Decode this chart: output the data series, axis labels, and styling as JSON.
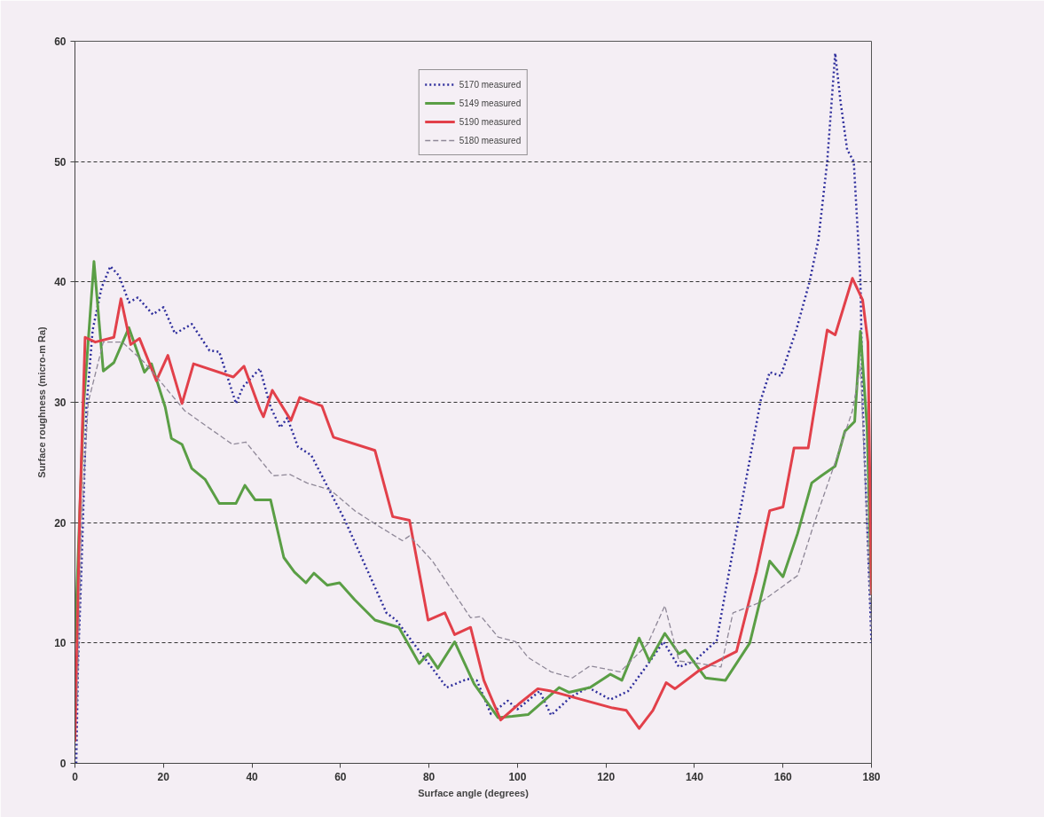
{
  "chart_data": {
    "type": "line",
    "xlabel": "Surface angle (degrees)",
    "ylabel": "Surface roughness (micro-m Ra)",
    "xlim": [
      0,
      180
    ],
    "ylim": [
      0,
      60
    ],
    "xticks": [
      0,
      20,
      40,
      60,
      80,
      100,
      120,
      140,
      160,
      180
    ],
    "yticks": [
      0,
      10,
      20,
      30,
      40,
      50,
      60
    ],
    "grid": "y",
    "legend": "top",
    "marker": "none",
    "series": [
      {
        "name": "5170 measured",
        "color": "#2e2e9c",
        "line_style": "dotted",
        "x": [
          0.3,
          0.7,
          1.4,
          2.6,
          4,
          6,
          8,
          10,
          12.2,
          14.2,
          17.6,
          20,
          22.6,
          26.4,
          30.4,
          32.6,
          36.4,
          38,
          41.8,
          44.2,
          46.4,
          48,
          50.4,
          53.4,
          61,
          70.4,
          72.6,
          84,
          88.6,
          90.8,
          94,
          97.8,
          100,
          105,
          107.6,
          112,
          116,
          121,
          125,
          129,
          133,
          136.5,
          140,
          145,
          150,
          155,
          157,
          159.5,
          163,
          166,
          168,
          170,
          171.8,
          173,
          174.5,
          176,
          177.5,
          178,
          179,
          180
        ],
        "values": [
          0,
          8.3,
          15.4,
          29.6,
          36,
          39.5,
          41.3,
          40.5,
          38.3,
          38.7,
          37.3,
          37.9,
          35.7,
          36.5,
          34.3,
          34.2,
          29.9,
          31.3,
          32.8,
          29.6,
          27.9,
          28.7,
          26.3,
          25.6,
          20.2,
          12.5,
          11.9,
          6.3,
          7,
          6.9,
          4.1,
          5.2,
          4.5,
          6,
          4,
          5.5,
          6.3,
          5.3,
          6,
          8,
          10.1,
          8,
          8.5,
          10.2,
          20.3,
          30.2,
          32.5,
          32.2,
          36,
          40,
          43.5,
          50,
          59,
          55,
          51,
          50,
          40.2,
          29.9,
          20,
          10
        ]
      },
      {
        "name": "5149 measured",
        "color": "#5a9e45",
        "line_style": "solid",
        "x": [
          0,
          2,
          4.3,
          6.4,
          8.8,
          12.2,
          15.7,
          17.3,
          20.4,
          21.8,
          24.2,
          26.4,
          29.4,
          32.6,
          36.4,
          38.4,
          40.7,
          44.2,
          47.2,
          49.6,
          52.2,
          54,
          57,
          59.8,
          63.2,
          67.8,
          73.2,
          77.8,
          79.8,
          82,
          85.8,
          90.2,
          95.6,
          98.8,
          102.4,
          109.4,
          111.6,
          116.4,
          121,
          123.6,
          127.5,
          129.8,
          133.3,
          136.5,
          137.9,
          142.5,
          147,
          152.5,
          157,
          160,
          163.3,
          166.5,
          168.7,
          171.8,
          174,
          176.2,
          177.5,
          179,
          180
        ],
        "values": [
          10,
          30,
          41.7,
          32.6,
          33.3,
          36.2,
          32.5,
          33.2,
          29.6,
          27,
          26.5,
          24.5,
          23.6,
          21.6,
          21.6,
          23.1,
          21.9,
          21.9,
          17.1,
          15.9,
          15,
          15.8,
          14.8,
          15,
          13.6,
          11.9,
          11.3,
          8.3,
          9.1,
          7.9,
          10.1,
          6.6,
          3.8,
          3.9,
          4.05,
          6.3,
          5.9,
          6.3,
          7.4,
          6.9,
          10.4,
          8.5,
          10.8,
          9.1,
          9.4,
          7.1,
          6.9,
          10,
          16.8,
          15.5,
          19.1,
          23.3,
          23.9,
          24.7,
          27.6,
          28.4,
          35.9,
          28,
          14
        ]
      },
      {
        "name": "5190 measured",
        "color": "#e2404a",
        "line_style": "solid",
        "x": [
          0,
          1.1,
          2.3,
          4.6,
          8.8,
          10.4,
          12.6,
          14.6,
          18.4,
          21,
          24.2,
          26.8,
          35.8,
          38.2,
          41.8,
          42.6,
          44.6,
          48.8,
          50.8,
          55.8,
          58.4,
          67.8,
          71.8,
          75.6,
          79.8,
          83.6,
          85.8,
          89.4,
          92.4,
          96.2,
          100.2,
          104.6,
          107.6,
          121.5,
          124.6,
          127.5,
          130.6,
          133.6,
          135.6,
          141,
          149.5,
          154,
          157,
          160,
          162.5,
          165.7,
          167.8,
          170,
          171.8,
          175.7,
          178,
          179.2,
          180
        ],
        "values": [
          1.8,
          21,
          35.4,
          35,
          35.4,
          38.6,
          34.8,
          35.3,
          31.8,
          33.9,
          29.9,
          33.2,
          32.1,
          33,
          29.4,
          28.8,
          31,
          28.5,
          30.4,
          29.7,
          27.1,
          26,
          20.5,
          20.2,
          11.9,
          12.5,
          10.7,
          11.3,
          6.9,
          3.6,
          4.9,
          6.2,
          6,
          4.6,
          4.4,
          2.9,
          4.4,
          6.7,
          6.2,
          7.7,
          9.3,
          15.9,
          21,
          21.3,
          26.2,
          26.2,
          31,
          36,
          35.6,
          40.3,
          38.5,
          35,
          14
        ]
      },
      {
        "name": "5180 measured",
        "color": "#8f8898",
        "line_style": "dashed",
        "x": [
          0.5,
          1.5,
          3,
          6.4,
          10.7,
          15.7,
          19.6,
          24.8,
          29.4,
          35.6,
          38.6,
          44.8,
          48.6,
          52.4,
          57.8,
          63.2,
          67.8,
          74,
          75.6,
          80.8,
          89.4,
          91.8,
          95.6,
          99.6,
          102.4,
          107.6,
          112.4,
          116.4,
          123.2,
          129.4,
          133.3,
          136.5,
          141,
          146,
          148.7,
          155,
          163.3,
          167,
          171.8,
          175.7,
          177.5,
          180
        ],
        "values": [
          5,
          20,
          30,
          35,
          35,
          33.3,
          31.6,
          29.3,
          28.1,
          26.5,
          26.7,
          23.9,
          24,
          23.3,
          22.7,
          21,
          19.9,
          18.5,
          18.9,
          16.8,
          12.1,
          12.2,
          10.5,
          10.1,
          8.8,
          7.6,
          7.1,
          8.1,
          7.6,
          9.9,
          13.1,
          8.5,
          8.3,
          8,
          12.5,
          13.4,
          15.6,
          19.9,
          25,
          29.3,
          33,
          11.1
        ]
      }
    ]
  }
}
